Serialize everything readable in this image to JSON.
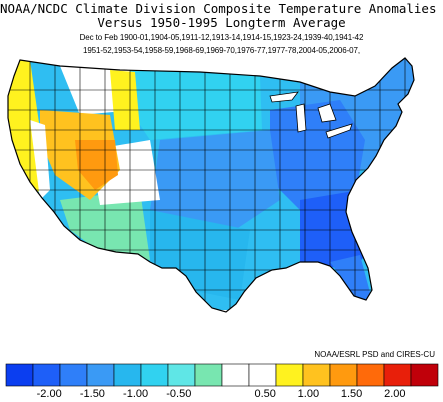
{
  "title": {
    "line1": "NOAA/NCDC Climate Division Composite Temperature Anomalies (F)",
    "line2": "Versus 1950-1995 Longterm Average",
    "line3": "Dec to Feb   1900-01,1904-05,1911-12,1913-14,1914-15,1923-24,1939-40,1941-42",
    "line4": "1951-52,1953-54,1958-59,1968-69,1969-70,1976-77,1977-78,2004-05,2006-07,"
  },
  "credit": "NOAA/ESRL PSD and CIRES-CU",
  "legend": {
    "colors": [
      "#0b3ef0",
      "#1e5ff8",
      "#2f7ff9",
      "#3a9af5",
      "#27b7ee",
      "#31d2f0",
      "#5fe6e6",
      "#78e6b0",
      "#ffffff",
      "#ffffff",
      "#fff21f",
      "#ffc21f",
      "#ff9a0f",
      "#ff6a0a",
      "#e81f0a",
      "#c0000a"
    ],
    "ticks": [
      "-2.00",
      "-1.50",
      "-1.00",
      "-0.50",
      "0.50",
      "1.00",
      "1.50",
      "2.00"
    ],
    "tick_values": [
      -2.0,
      -1.5,
      -1.0,
      -0.5,
      0.5,
      1.0,
      1.5,
      2.0
    ],
    "range": [
      -2.5,
      2.5
    ]
  },
  "map": {
    "land_fill_default": "#2fbef2",
    "regions": [
      {
        "name": "pacific-northwest-warm",
        "color": "#ffe21f"
      },
      {
        "name": "california-coast-warm",
        "color": "#fff21f"
      },
      {
        "name": "great-basin-warm",
        "color": "#ffc21f"
      },
      {
        "name": "utah-hot",
        "color": "#ff9a0f"
      },
      {
        "name": "rockies-neutral",
        "color": "#ffffff"
      },
      {
        "name": "southwest-cool",
        "color": "#78e6b0"
      },
      {
        "name": "plains-cool",
        "color": "#31d2f0"
      },
      {
        "name": "midwest-cold",
        "color": "#2f7ff9"
      },
      {
        "name": "southeast-cold",
        "color": "#1e5ff8"
      },
      {
        "name": "northeast-cool",
        "color": "#3a9af5"
      }
    ]
  }
}
